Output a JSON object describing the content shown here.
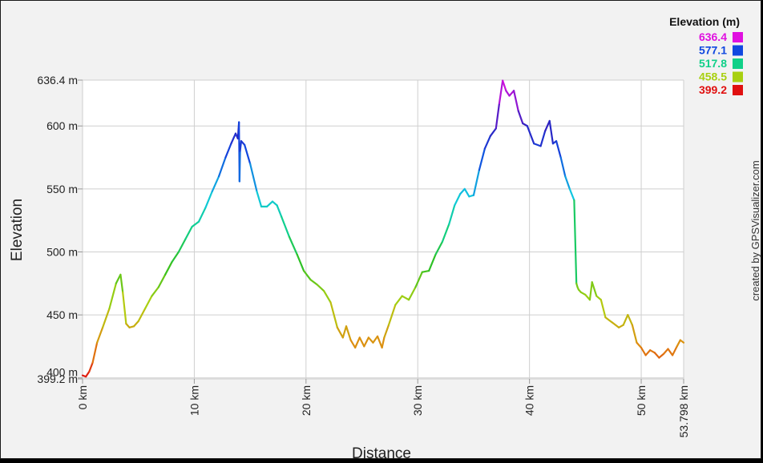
{
  "chart_data": {
    "type": "line",
    "xlabel": "Distance",
    "ylabel": "Elevation",
    "xlim": [
      0,
      53.798
    ],
    "ylim": [
      399.2,
      636.4
    ],
    "x_ticks": [
      {
        "value": 0,
        "label": "0 km"
      },
      {
        "value": 10,
        "label": "10 km"
      },
      {
        "value": 20,
        "label": "20 km"
      },
      {
        "value": 30,
        "label": "30 km"
      },
      {
        "value": 40,
        "label": "40 km"
      },
      {
        "value": 50,
        "label": "50 km"
      },
      {
        "value": 53.798,
        "label": "53.798 km"
      }
    ],
    "y_ticks": [
      {
        "value": 399.2,
        "label": "399.2 m"
      },
      {
        "value": 400,
        "label": "400 m"
      },
      {
        "value": 450,
        "label": "450 m"
      },
      {
        "value": 500,
        "label": "500 m"
      },
      {
        "value": 550,
        "label": "550 m"
      },
      {
        "value": 600,
        "label": "600 m"
      },
      {
        "value": 636.4,
        "label": "636.4 m"
      }
    ],
    "grid": true,
    "legend": {
      "title": "Elevation (m)",
      "placement": "top-right",
      "entries": [
        {
          "label": "636.4",
          "value": 636.4,
          "color": "#e010e0"
        },
        {
          "label": "577.1",
          "value": 577.1,
          "color": "#1048e0"
        },
        {
          "label": "517.8",
          "value": 517.8,
          "color": "#10d088"
        },
        {
          "label": "458.5",
          "value": 458.5,
          "color": "#a8d010"
        },
        {
          "label": "399.2",
          "value": 399.2,
          "color": "#e01010"
        }
      ]
    },
    "color_scale": [
      {
        "value": 399.2,
        "color": "#e01010"
      },
      {
        "value": 425.0,
        "color": "#e08a10"
      },
      {
        "value": 458.5,
        "color": "#b0d010"
      },
      {
        "value": 490.0,
        "color": "#30c020"
      },
      {
        "value": 517.8,
        "color": "#10d088"
      },
      {
        "value": 545.0,
        "color": "#10c8e0"
      },
      {
        "value": 577.1,
        "color": "#1048e0"
      },
      {
        "value": 600.0,
        "color": "#3020c0"
      },
      {
        "value": 636.4,
        "color": "#e010e0"
      }
    ],
    "series": [
      {
        "x": [
          0.0,
          0.3,
          0.6,
          0.9,
          1.3,
          1.8,
          2.4,
          3.0,
          3.4,
          3.6,
          3.9,
          4.2,
          4.6,
          5.0,
          5.6,
          6.2,
          6.8,
          7.4,
          8.0,
          8.6,
          9.2,
          9.8,
          10.4,
          11.0,
          11.6,
          12.2,
          12.8,
          13.3,
          13.7,
          13.9,
          14.0,
          14.05,
          14.1,
          14.2,
          14.5,
          15.0,
          15.6,
          16.0,
          16.5,
          17.0,
          17.4,
          17.8,
          18.5,
          19.2,
          19.8,
          20.4,
          21.0,
          21.6,
          22.2,
          22.8,
          23.3,
          23.6,
          24.0,
          24.4,
          24.8,
          25.2,
          25.6,
          26.0,
          26.4,
          26.8,
          27.0,
          27.4,
          28.0,
          28.6,
          29.2,
          29.8,
          30.4,
          31.0,
          31.6,
          32.2,
          32.8,
          33.3,
          33.8,
          34.2,
          34.6,
          35.0,
          35.5,
          36.0,
          36.5,
          37.0,
          37.3,
          37.6,
          37.9,
          38.2,
          38.6,
          39.0,
          39.4,
          39.8,
          40.4,
          41.0,
          41.4,
          41.8,
          42.1,
          42.4,
          42.8,
          43.2,
          43.6,
          44.0,
          44.2,
          44.3,
          44.4,
          44.6,
          45.0,
          45.4,
          45.6,
          46.0,
          46.4,
          46.8,
          47.4,
          48.0,
          48.4,
          48.8,
          49.2,
          49.6,
          50.0,
          50.4,
          50.8,
          51.2,
          51.6,
          52.0,
          52.4,
          52.8,
          53.2,
          53.5,
          53.798
        ],
        "y": [
          402,
          401,
          405,
          412,
          428,
          440,
          455,
          475,
          482,
          468,
          443,
          440,
          441,
          445,
          455,
          465,
          472,
          482,
          492,
          500,
          510,
          520,
          524,
          535,
          548,
          560,
          575,
          586,
          594,
          590,
          603,
          556,
          580,
          588,
          585,
          570,
          548,
          536,
          536,
          540,
          537,
          528,
          512,
          498,
          485,
          478,
          474,
          469,
          460,
          440,
          432,
          441,
          430,
          424,
          432,
          425,
          432,
          428,
          433,
          424,
          432,
          442,
          458,
          465,
          462,
          472,
          484,
          485,
          498,
          508,
          522,
          537,
          546,
          550,
          544,
          545,
          565,
          582,
          592,
          598,
          618,
          636,
          628,
          624,
          628,
          612,
          602,
          600,
          586,
          584,
          596,
          604,
          586,
          588,
          575,
          560,
          550,
          541,
          475,
          472,
          470,
          468,
          466,
          462,
          476,
          465,
          462,
          448,
          444,
          440,
          442,
          450,
          442,
          428,
          424,
          418,
          422,
          420,
          416,
          419,
          423,
          418,
          425,
          430,
          428
        ]
      }
    ]
  },
  "credit": "created by GPSVisualizer.com"
}
